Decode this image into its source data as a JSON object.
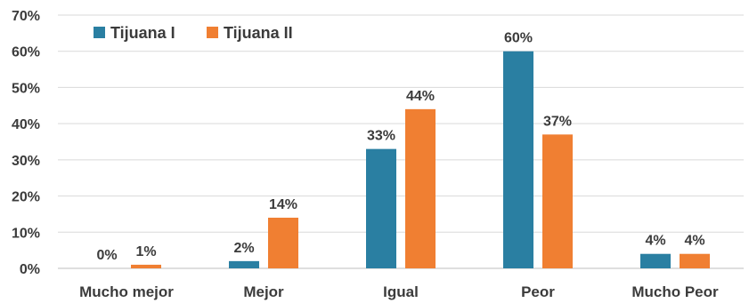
{
  "chart_data": {
    "type": "bar",
    "categories": [
      "Mucho mejor",
      "Mejor",
      "Igual",
      "Peor",
      "Mucho Peor"
    ],
    "series": [
      {
        "name": "Tijuana I",
        "color": "#2a7fa2",
        "values": [
          0,
          2,
          33,
          60,
          4
        ]
      },
      {
        "name": "Tijuana II",
        "color": "#f07f32",
        "values": [
          1,
          14,
          44,
          37,
          4
        ]
      }
    ],
    "data_labels": [
      [
        "0%",
        "2%",
        "33%",
        "60%",
        "4%"
      ],
      [
        "1%",
        "14%",
        "44%",
        "37%",
        "4%"
      ]
    ],
    "yticks": [
      "0%",
      "10%",
      "20%",
      "30%",
      "40%",
      "50%",
      "60%",
      "70%"
    ],
    "ylim": [
      0,
      70
    ],
    "grid": true,
    "legend": "top-left",
    "title": "",
    "xlabel": "",
    "ylabel": ""
  }
}
